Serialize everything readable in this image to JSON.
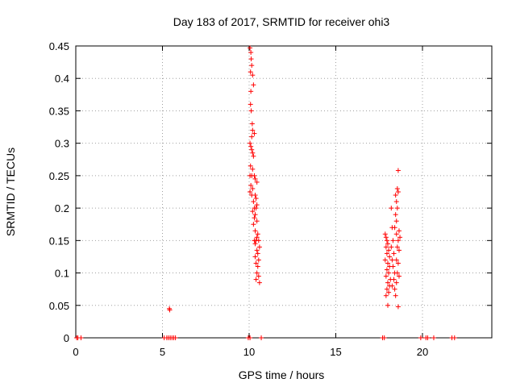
{
  "chart_data": {
    "type": "scatter",
    "title": "Day 183 of 2017, SRMTID for receiver ohi3",
    "xlabel": "GPS time / hours",
    "ylabel": "SRMTID / TECUs",
    "xlim": [
      0,
      24
    ],
    "ylim": [
      0,
      0.45
    ],
    "xticks": [
      0,
      5,
      10,
      15,
      20
    ],
    "xtick_labels": [
      "0",
      "5",
      "10",
      "15",
      "20"
    ],
    "yticks": [
      0,
      0.05,
      0.1,
      0.15,
      0.2,
      0.25,
      0.3,
      0.35,
      0.4,
      0.45
    ],
    "ytick_labels": [
      "0",
      "0.05",
      "0.1",
      "0.15",
      "0.2",
      "0.25",
      "0.3",
      "0.35",
      "0.4",
      "0.45"
    ],
    "grid": true,
    "marker": "+",
    "color": "#ff0000",
    "series": [
      {
        "name": "SRMTID",
        "points": [
          [
            0.05,
            0
          ],
          [
            0.12,
            0
          ],
          [
            0.3,
            0
          ],
          [
            5.1,
            0
          ],
          [
            5.25,
            0
          ],
          [
            5.35,
            0
          ],
          [
            5.45,
            0
          ],
          [
            5.55,
            0
          ],
          [
            5.65,
            0
          ],
          [
            5.75,
            0
          ],
          [
            9.95,
            0
          ],
          [
            10.05,
            0
          ],
          [
            10.7,
            0
          ],
          [
            17.7,
            0
          ],
          [
            17.8,
            0
          ],
          [
            19.9,
            0
          ],
          [
            20.2,
            0
          ],
          [
            20.3,
            0
          ],
          [
            20.65,
            0
          ],
          [
            21.7,
            0
          ],
          [
            21.85,
            0
          ],
          [
            5.4,
            0.045
          ],
          [
            5.42,
            0.043
          ],
          [
            10.05,
            0.447
          ],
          [
            10.1,
            0.44
          ],
          [
            10.12,
            0.43
          ],
          [
            10.15,
            0.42
          ],
          [
            10.08,
            0.41
          ],
          [
            10.2,
            0.405
          ],
          [
            10.25,
            0.39
          ],
          [
            10.1,
            0.38
          ],
          [
            10.08,
            0.36
          ],
          [
            10.12,
            0.35
          ],
          [
            10.18,
            0.33
          ],
          [
            10.2,
            0.32
          ],
          [
            10.15,
            0.31
          ],
          [
            10.3,
            0.315
          ],
          [
            10.05,
            0.3
          ],
          [
            10.1,
            0.295
          ],
          [
            10.15,
            0.29
          ],
          [
            10.2,
            0.285
          ],
          [
            10.25,
            0.28
          ],
          [
            10.08,
            0.265
          ],
          [
            10.2,
            0.26
          ],
          [
            10.05,
            0.25
          ],
          [
            10.15,
            0.25
          ],
          [
            10.3,
            0.25
          ],
          [
            10.35,
            0.245
          ],
          [
            10.45,
            0.24
          ],
          [
            10.1,
            0.235
          ],
          [
            10.2,
            0.23
          ],
          [
            10.05,
            0.225
          ],
          [
            10.15,
            0.22
          ],
          [
            10.35,
            0.22
          ],
          [
            10.4,
            0.215
          ],
          [
            10.25,
            0.21
          ],
          [
            10.45,
            0.205
          ],
          [
            10.3,
            0.2
          ],
          [
            10.4,
            0.2
          ],
          [
            10.2,
            0.195
          ],
          [
            10.35,
            0.19
          ],
          [
            10.3,
            0.185
          ],
          [
            10.45,
            0.18
          ],
          [
            10.25,
            0.175
          ],
          [
            10.35,
            0.165
          ],
          [
            10.5,
            0.16
          ],
          [
            10.45,
            0.155
          ],
          [
            10.3,
            0.15
          ],
          [
            10.4,
            0.15
          ],
          [
            10.55,
            0.15
          ],
          [
            10.35,
            0.145
          ],
          [
            10.6,
            0.14
          ],
          [
            10.45,
            0.135
          ],
          [
            10.5,
            0.13
          ],
          [
            10.35,
            0.125
          ],
          [
            10.55,
            0.12
          ],
          [
            10.4,
            0.115
          ],
          [
            10.5,
            0.11
          ],
          [
            10.45,
            0.1
          ],
          [
            10.55,
            0.095
          ],
          [
            10.4,
            0.09
          ],
          [
            10.6,
            0.085
          ],
          [
            17.85,
            0.16
          ],
          [
            17.9,
            0.155
          ],
          [
            17.95,
            0.15
          ],
          [
            18.0,
            0.145
          ],
          [
            17.9,
            0.14
          ],
          [
            18.05,
            0.135
          ],
          [
            17.95,
            0.13
          ],
          [
            18.1,
            0.125
          ],
          [
            17.85,
            0.12
          ],
          [
            18.0,
            0.115
          ],
          [
            18.1,
            0.11
          ],
          [
            17.95,
            0.105
          ],
          [
            18.05,
            0.1
          ],
          [
            17.9,
            0.095
          ],
          [
            18.15,
            0.09
          ],
          [
            18.0,
            0.085
          ],
          [
            18.1,
            0.08
          ],
          [
            17.95,
            0.075
          ],
          [
            18.05,
            0.07
          ],
          [
            17.9,
            0.065
          ],
          [
            18.0,
            0.05
          ],
          [
            18.2,
            0.2
          ],
          [
            18.25,
            0.17
          ],
          [
            18.3,
            0.15
          ],
          [
            18.2,
            0.14
          ],
          [
            18.35,
            0.13
          ],
          [
            18.25,
            0.12
          ],
          [
            18.3,
            0.11
          ],
          [
            18.4,
            0.1
          ],
          [
            18.35,
            0.09
          ],
          [
            18.25,
            0.08
          ],
          [
            18.45,
            0.065
          ],
          [
            18.4,
            0.17
          ],
          [
            18.5,
            0.18
          ],
          [
            18.45,
            0.19
          ],
          [
            18.55,
            0.2
          ],
          [
            18.5,
            0.21
          ],
          [
            18.45,
            0.22
          ],
          [
            18.55,
            0.23
          ],
          [
            18.6,
            0.225
          ],
          [
            18.5,
            0.16
          ],
          [
            18.6,
            0.15
          ],
          [
            18.55,
            0.14
          ],
          [
            18.65,
            0.135
          ],
          [
            18.5,
            0.12
          ],
          [
            18.6,
            0.115
          ],
          [
            18.55,
            0.1
          ],
          [
            18.65,
            0.095
          ],
          [
            18.6,
            0.258
          ],
          [
            18.65,
            0.165
          ],
          [
            18.7,
            0.155
          ],
          [
            18.6,
            0.048
          ],
          [
            18.5,
            0.085
          ],
          [
            18.4,
            0.075
          ]
        ]
      }
    ]
  }
}
